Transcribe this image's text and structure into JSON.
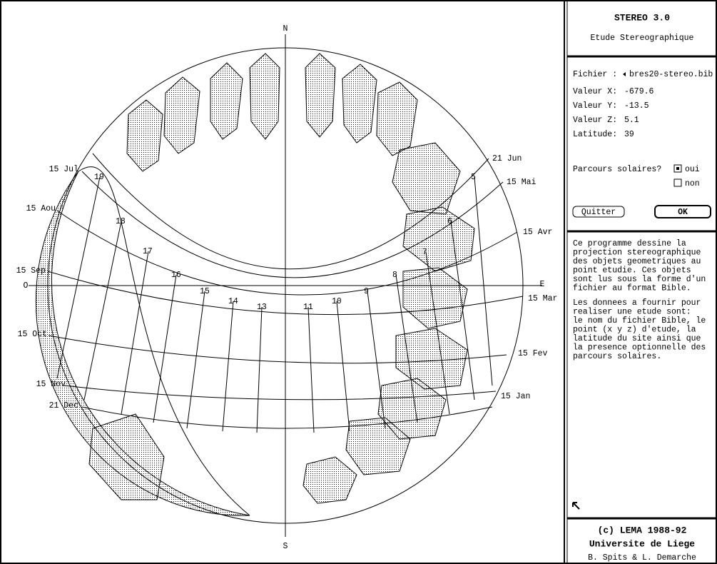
{
  "diagram": {
    "compass": {
      "north": "N",
      "south": "S",
      "east": "E",
      "west": "O"
    },
    "months_right": [
      "21 Jun",
      "15 Mai",
      "15 Avr",
      "15 Mar",
      "15 Fev",
      "15 Jan"
    ],
    "months_left": [
      "15 Jul",
      "15 Aou",
      "15 Sep",
      "15 Oct",
      "15 Nov",
      "21 Dec"
    ],
    "hours": [
      "19",
      "18",
      "17",
      "16",
      "15",
      "14",
      "13",
      "11",
      "10",
      "9",
      "8",
      "7",
      "6",
      "5"
    ]
  },
  "panel": {
    "title": "STEREO 3.0",
    "subtitle": "Etude Stereographique",
    "fields": [
      {
        "label": "Fichier :",
        "value": "bres20-stereo.bib"
      },
      {
        "label": "Valeur X:",
        "value": "-679.6"
      },
      {
        "label": "Valeur Y:",
        "value": "-13.5"
      },
      {
        "label": "Valeur Z:",
        "value": "5.1"
      },
      {
        "label": "Latitude:",
        "value": "39"
      }
    ],
    "question": "Parcours solaires?",
    "options": [
      "oui",
      "non"
    ],
    "buttons": [
      "Quitter",
      "OK"
    ],
    "description": [
      [
        "Ce programme dessine la",
        "projection stereographique",
        "des objets geometriques au",
        "point etudie. Ces objets",
        "sont lus sous la forme d'un",
        "fichier au format Bible."
      ],
      [
        "Les donnees a fournir pour",
        "realiser une etude sont:",
        "le nom du fichier Bible, le",
        "point (x y z) d'etude, la",
        "latitude du site ainsi que",
        "la presence optionnelle des",
        "parcours solaires."
      ]
    ],
    "footer": [
      "(c) LEMA 1988-92",
      "Universite de Liege",
      "B. Spits & L. Demarche"
    ]
  }
}
